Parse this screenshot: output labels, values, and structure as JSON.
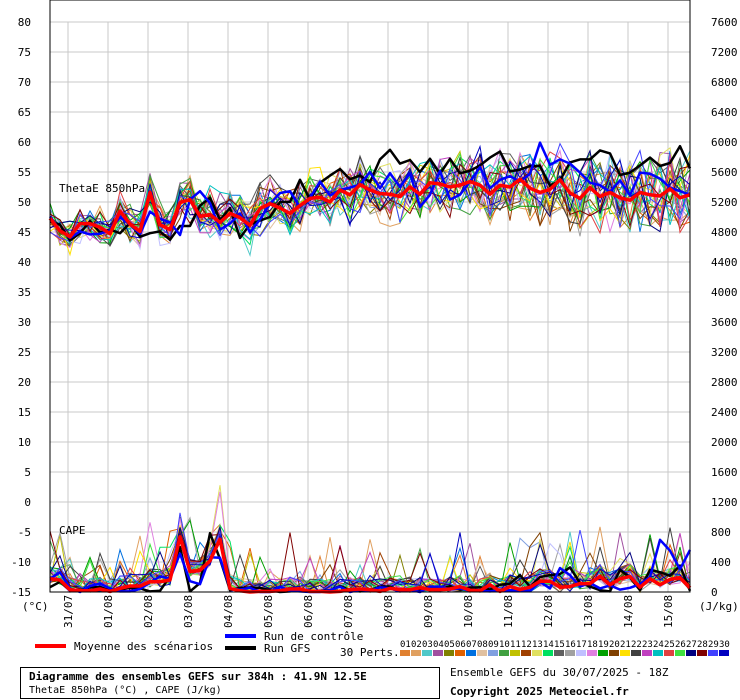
{
  "chart_data": {
    "type": "line",
    "left_axis": {
      "unit": "(°C)",
      "min": -15,
      "max": 80,
      "ticks": [
        80,
        75,
        70,
        65,
        60,
        55,
        50,
        45,
        40,
        35,
        30,
        25,
        20,
        15,
        10,
        5,
        0,
        -5,
        -10,
        -15
      ]
    },
    "right_axis": {
      "unit": "(J/kg)",
      "ticks": [
        7600,
        7200,
        6800,
        6400,
        6000,
        5600,
        5200,
        4800,
        4400,
        4000,
        3600,
        3200,
        2800,
        2400,
        2000,
        1600,
        1200,
        800,
        400,
        0
      ]
    },
    "x_labels": [
      "31/07",
      "01/08",
      "02/08",
      "03/08",
      "04/08",
      "05/08",
      "06/08",
      "07/08",
      "08/08",
      "09/08",
      "10/08",
      "11/08",
      "12/08",
      "13/08",
      "14/08",
      "15/08"
    ],
    "panels": [
      {
        "label": "ThetaE 850hPa",
        "unit": "°C"
      },
      {
        "label": "CAPE",
        "unit": "J/kg"
      }
    ],
    "members": [
      "01",
      "02",
      "03",
      "04",
      "05",
      "06",
      "07",
      "08",
      "09",
      "10",
      "11",
      "12",
      "13",
      "14",
      "15",
      "16",
      "17",
      "18",
      "19",
      "20",
      "21",
      "22",
      "23",
      "24",
      "25",
      "26",
      "27",
      "28",
      "29",
      "30"
    ],
    "member_colors": [
      "#e08030",
      "#e0a060",
      "#50c8c8",
      "#a050a0",
      "#808000",
      "#e06000",
      "#0070e0",
      "#e0c0a0",
      "#80a0e0",
      "#40a040",
      "#c0c000",
      "#a04000",
      "#e0e060",
      "#00e060",
      "#606060",
      "#a0a0a0",
      "#c0c0ff",
      "#e080e0",
      "#00a000",
      "#804000",
      "#ffe000",
      "#404040",
      "#c040c0",
      "#00c0c0",
      "#e04040",
      "#40e040",
      "#000080",
      "#800000",
      "#4040ff",
      "#0000c0"
    ],
    "series": [
      {
        "name": "Moyenne des scénarios",
        "color": "#ff0000",
        "theta_e": [
          47.3,
          45.2,
          44.2,
          46.4,
          46.4,
          45.8,
          44.7,
          48.5,
          46.3,
          45.1,
          51.6,
          46.2,
          45.4,
          49.9,
          50.4,
          47.6,
          47.9,
          46.6,
          48.1,
          47.4,
          46.1,
          48.9,
          49.7,
          49.0,
          48.1,
          49.4,
          50.6,
          50.8,
          50.0,
          52.0,
          51.2,
          52.9,
          52.0,
          51.4,
          51.3,
          50.9,
          52.5,
          51.3,
          53.2,
          53.0,
          52.5,
          52.8,
          53.4,
          52.8,
          51.3,
          52.8,
          52.5,
          53.8,
          52.3,
          51.6,
          52.1,
          53.7,
          51.5,
          50.6,
          52.4,
          50.9,
          51.6,
          50.7,
          50.3,
          51.6,
          51.2,
          51.0,
          52.2,
          50.7,
          51.2
        ],
        "cape": [
          -12.8,
          -13.0,
          -14.6,
          -14.8,
          -14.8,
          -14.5,
          -14.9,
          -14.4,
          -14.0,
          -14.0,
          -13.3,
          -13.3,
          -13.0,
          -5.8,
          -11.6,
          -11.4,
          -9.8,
          -6.2,
          -14.4,
          -14.8,
          -15.0,
          -14.9,
          -14.9,
          -14.8,
          -14.5,
          -14.5,
          -14.9,
          -14.9,
          -15.0,
          -14.9,
          -14.6,
          -14.5,
          -14.6,
          -14.9,
          -14.4,
          -14.6,
          -14.6,
          -14.3,
          -14.6,
          -14.6,
          -14.5,
          -14.1,
          -14.7,
          -14.8,
          -13.8,
          -14.9,
          -14.1,
          -14.6,
          -14.2,
          -13.2,
          -13.2,
          -14.2,
          -14.1,
          -13.6,
          -13.6,
          -12.4,
          -13.8,
          -12.8,
          -12.4,
          -14.2,
          -12.8,
          -13.8,
          -12.9,
          -12.6,
          -14.3
        ]
      },
      {
        "name": "Run de contrôle",
        "color": "#0000ff",
        "theta_e": [
          47.6,
          45.3,
          44.0,
          45.1,
          44.6,
          44.7,
          45.3,
          47.5,
          46.2,
          44.7,
          48.4,
          47.2,
          46.6,
          44.5,
          50.4,
          51.8,
          49.8,
          45.4,
          46.4,
          48.1,
          44.9,
          47.1,
          49.7,
          51.5,
          51.8,
          49.1,
          50.7,
          53.4,
          51.1,
          52.0,
          52.4,
          52.9,
          55.0,
          52.3,
          54.8,
          52.5,
          54.8,
          49.2,
          51.2,
          55.2,
          50.4,
          51.2,
          53.4,
          55.8,
          52.3,
          53.7,
          54.3,
          53.4,
          54.7,
          59.9,
          56.2,
          57.1,
          56.4,
          54.9,
          53.2,
          52.8,
          51.7,
          53.6,
          51.1,
          54.9,
          54.7,
          53.9,
          52.4,
          51.8,
          51.2
        ],
        "cape": [
          -12.8,
          -11.7,
          -14.4,
          -15.0,
          -14.0,
          -13.6,
          -14.4,
          -14.9,
          -14.9,
          -14.5,
          -13.4,
          -12.4,
          -12.8,
          -8.6,
          -13.2,
          -13.7,
          -9.2,
          -9.3,
          -14.4,
          -14.6,
          -14.3,
          -15.0,
          -15.0,
          -14.1,
          -14.8,
          -14.9,
          -15.0,
          -15.0,
          -14.7,
          -14.1,
          -15.0,
          -14.6,
          -14.8,
          -14.2,
          -14.4,
          -14.9,
          -14.6,
          -15.0,
          -14.1,
          -14.1,
          -14.6,
          -14.4,
          -14.8,
          -14.8,
          -14.9,
          -14.7,
          -14.7,
          -14.7,
          -14.8,
          -13.3,
          -14.4,
          -11.0,
          -12.2,
          -14.1,
          -13.5,
          -14.4,
          -13.9,
          -14.6,
          -14.3,
          -13.7,
          -12.5,
          -6.3,
          -8.1,
          -11.2,
          -8.0
        ]
      },
      {
        "name": "Run GFS",
        "color": "#000000",
        "theta_e": [
          46.8,
          46.2,
          43.6,
          44.8,
          46.8,
          44.9,
          45.4,
          44.8,
          46.5,
          44.2,
          44.8,
          45.1,
          43.7,
          46.0,
          46.0,
          49.4,
          50.7,
          47.0,
          49.0,
          44.0,
          46.3,
          46.9,
          47.5,
          50.0,
          50.0,
          53.7,
          50.4,
          53.2,
          54.4,
          55.5,
          53.8,
          54.4,
          53.3,
          57.1,
          58.7,
          56.4,
          57.0,
          55.0,
          57.2,
          54.7,
          57.2,
          54.8,
          55.2,
          56.1,
          57.4,
          58.4,
          55.1,
          55.4,
          56.0,
          56.0,
          52.7,
          53.6,
          56.6,
          57.1,
          57.1,
          58.6,
          58.1,
          54.5,
          54.9,
          56.1,
          57.4,
          56.0,
          56.5,
          59.3,
          55.6
        ],
        "cape": [
          -14.2,
          -13.3,
          -14.7,
          -14.8,
          -14.2,
          -14.2,
          -14.8,
          -14.6,
          -14.3,
          -14.4,
          -14.9,
          -14.8,
          -12.4,
          -7.5,
          -14.9,
          -13.5,
          -5.2,
          -9.5,
          -14.7,
          -14.3,
          -14.3,
          -14.3,
          -14.7,
          -15.0,
          -14.9,
          -14.6,
          -14.9,
          -14.9,
          -14.7,
          -14.0,
          -14.7,
          -14.9,
          -14.7,
          -14.1,
          -14.1,
          -14.8,
          -14.6,
          -14.7,
          -14.1,
          -14.6,
          -14.0,
          -14.6,
          -14.3,
          -14.2,
          -14.6,
          -13.8,
          -13.6,
          -12.2,
          -14.1,
          -12.5,
          -12.2,
          -12.0,
          -10.9,
          -13.5,
          -14.1,
          -14.7,
          -14.9,
          -11.3,
          -12.6,
          -14.7,
          -11.3,
          -11.7,
          -12.3,
          -10.6,
          -14.8
        ]
      }
    ]
  },
  "legend": {
    "mean_label": "Moyenne des scénarios",
    "control_label": "Run de contrôle",
    "gfs_label": "Run GFS",
    "perts_label": "30 Perts."
  },
  "footer": {
    "title": "Diagramme des ensembles GEFS sur 384h : 41.9N 12.5E",
    "subtitle": "ThetaE 850hPa (°C) , CAPE (J/kg)",
    "run": "Ensemble GEFS du 30/07/2025 - 18Z",
    "copyright": "Copyright 2025 Meteociel.fr"
  }
}
